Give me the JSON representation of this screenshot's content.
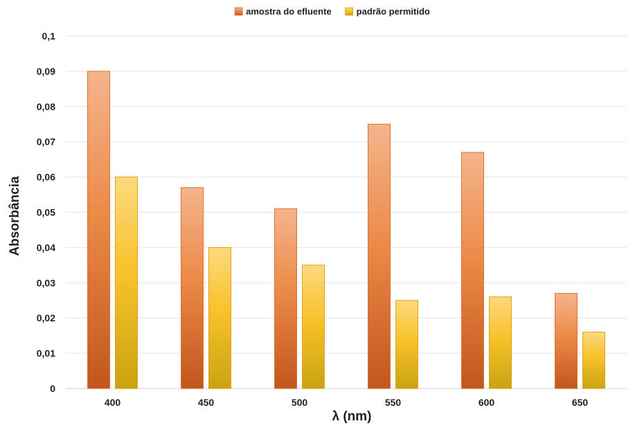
{
  "chart_data": {
    "type": "bar",
    "title": "",
    "xlabel": "λ (nm)",
    "ylabel": "Absorbância",
    "categories": [
      "400",
      "450",
      "500",
      "550",
      "600",
      "650"
    ],
    "series": [
      {
        "name": "amostra do efluente",
        "values": [
          0.09,
          0.057,
          0.051,
          0.075,
          0.067,
          0.027
        ],
        "color": "#e8884a"
      },
      {
        "name": "padrão permitido",
        "values": [
          0.06,
          0.04,
          0.035,
          0.025,
          0.026,
          0.016
        ],
        "color": "#f6c23e"
      }
    ],
    "ylim": [
      0,
      0.1
    ],
    "yticks": [
      "0",
      "0,01",
      "0,02",
      "0,03",
      "0,04",
      "0,05",
      "0,06",
      "0,07",
      "0,08",
      "0,09",
      "0,1"
    ],
    "grid": true,
    "legend_position": "top-center"
  }
}
